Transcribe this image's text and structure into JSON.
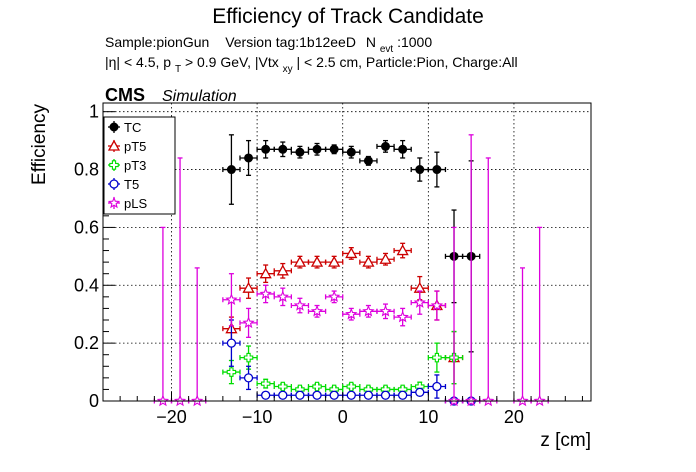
{
  "chart_data": {
    "type": "scatter",
    "title": "Efficiency of Track Candidate",
    "subtitle_line1": {
      "sample": "Sample:pionGun",
      "version": "Version tag:1b12eeD",
      "nevt_prefix": "N",
      "nevt_sub": "evt",
      "nevt_value": ":1000"
    },
    "subtitle_line2": {
      "eta": "|η| < 4.5, p",
      "pt_sub": "T",
      "pt_cut": " > 0.9 GeV, |Vtx",
      "vtx_sub": "xy",
      "rest": "| < 2.5 cm, Particle:Pion, Charge:All"
    },
    "cms_label": "CMS",
    "simulation_label": "Simulation",
    "xlabel": "z [cm]",
    "ylabel": "Efficiency",
    "xlim": [
      -28,
      29
    ],
    "ylim": [
      0,
      1.03
    ],
    "xticks": [
      -20,
      -10,
      0,
      10,
      20
    ],
    "xtick_labels": [
      "−20",
      "−10",
      "0",
      "10",
      "20"
    ],
    "yticks": [
      0,
      0.2,
      0.4,
      0.6,
      0.8,
      1
    ],
    "ytick_labels": [
      "0",
      "0.2",
      "0.4",
      "0.6",
      "0.8",
      "1"
    ],
    "grid": true,
    "legend_position": "top-left",
    "x_half_width": 1,
    "series": [
      {
        "name": "TC",
        "color": "#000000",
        "marker": "filled-circle",
        "x": [
          -13,
          -11,
          -9,
          -7,
          -5,
          -3,
          -1,
          1,
          3,
          5,
          7,
          9,
          11,
          13,
          15
        ],
        "y": [
          0.8,
          0.84,
          0.87,
          0.87,
          0.86,
          0.87,
          0.87,
          0.86,
          0.83,
          0.88,
          0.87,
          0.8,
          0.8,
          0.5,
          0.5
        ],
        "err": [
          0.12,
          0.06,
          0.03,
          0.025,
          0.02,
          0.02,
          0.015,
          0.02,
          0.015,
          0.02,
          0.03,
          0.04,
          0.06,
          0.16,
          0.33
        ]
      },
      {
        "name": "pT5",
        "color": "#cc0000",
        "marker": "open-triangle",
        "x": [
          -13,
          -11,
          -9,
          -7,
          -5,
          -3,
          -1,
          1,
          3,
          5,
          7,
          9,
          11,
          13
        ],
        "y": [
          0.25,
          0.39,
          0.44,
          0.45,
          0.48,
          0.48,
          0.48,
          0.51,
          0.48,
          0.49,
          0.52,
          0.39,
          0.33,
          0.15
        ],
        "err": [
          0.04,
          0.035,
          0.03,
          0.025,
          0.02,
          0.02,
          0.02,
          0.02,
          0.02,
          0.02,
          0.025,
          0.04,
          0.05,
          0.09
        ]
      },
      {
        "name": "pT3",
        "color": "#00dd00",
        "marker": "open-cross",
        "x": [
          -13,
          -11,
          -9,
          -7,
          -5,
          -3,
          -1,
          1,
          3,
          5,
          7,
          9,
          11,
          13
        ],
        "y": [
          0.1,
          0.15,
          0.06,
          0.05,
          0.04,
          0.05,
          0.04,
          0.05,
          0.04,
          0.04,
          0.04,
          0.05,
          0.15,
          0.15
        ],
        "err": [
          0.04,
          0.04,
          0.015,
          0.01,
          0.01,
          0.01,
          0.01,
          0.01,
          0.01,
          0.01,
          0.01,
          0.015,
          0.05,
          0.09
        ]
      },
      {
        "name": "T5",
        "color": "#0000cc",
        "marker": "open-circle",
        "x": [
          -13,
          -11,
          -9,
          -7,
          -5,
          -3,
          -1,
          1,
          3,
          5,
          7,
          9,
          11,
          13,
          15
        ],
        "y": [
          0.2,
          0.08,
          0.02,
          0.02,
          0.02,
          0.02,
          0.02,
          0.02,
          0.02,
          0.02,
          0.02,
          0.03,
          0.05,
          0.0,
          0.0
        ],
        "err": [
          0.08,
          0.04,
          0.01,
          0.008,
          0.008,
          0.008,
          0.008,
          0.008,
          0.008,
          0.008,
          0.008,
          0.01,
          0.04,
          0.0,
          0.0
        ]
      },
      {
        "name": "pLS",
        "color": "#dd00dd",
        "marker": "open-star",
        "x": [
          -21,
          -19,
          -17,
          -13,
          -11,
          -9,
          -7,
          -5,
          -3,
          -1,
          1,
          3,
          5,
          7,
          9,
          11,
          13,
          15,
          17,
          21,
          23
        ],
        "y": [
          0.0,
          0.0,
          0.0,
          0.35,
          0.27,
          0.37,
          0.36,
          0.33,
          0.31,
          0.36,
          0.3,
          0.31,
          0.31,
          0.29,
          0.34,
          0.33,
          0.0,
          0.0,
          0.0,
          0.0,
          0.0
        ],
        "err": [
          0.6,
          0.84,
          0.46,
          0.09,
          0.05,
          0.03,
          0.03,
          0.025,
          0.02,
          0.02,
          0.02,
          0.02,
          0.025,
          0.03,
          0.04,
          0.05,
          0.6,
          0.92,
          0.84,
          0.46,
          0.6
        ]
      }
    ]
  }
}
